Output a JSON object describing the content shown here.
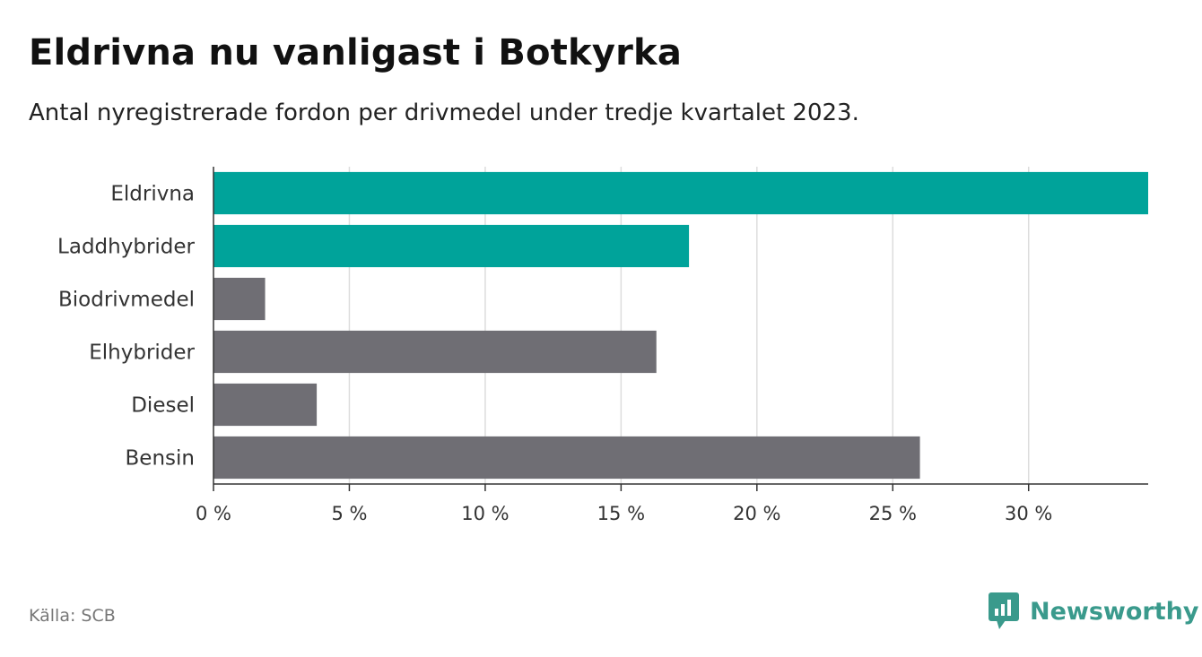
{
  "header": {
    "title": "Eldrivna nu vanligast i Botkyrka",
    "subtitle": "Antal nyregistrerade fordon per drivmedel under tredje kvartalet 2023."
  },
  "chart_data": {
    "type": "bar",
    "orientation": "horizontal",
    "categories": [
      "Eldrivna",
      "Laddhybrider",
      "Biodrivmedel",
      "Elhybrider",
      "Diesel",
      "Bensin"
    ],
    "values": [
      34.4,
      17.5,
      1.9,
      16.3,
      3.8,
      26.0
    ],
    "colors": [
      "#00a39a",
      "#00a39a",
      "#6f6e74",
      "#6f6e74",
      "#6f6e74",
      "#6f6e74"
    ],
    "x_ticks": [
      0,
      5,
      10,
      15,
      20,
      25,
      30
    ],
    "x_tick_labels": [
      "0 %",
      "5 %",
      "10 %",
      "15 %",
      "20 %",
      "25 %",
      "30 %"
    ],
    "xlim": [
      0,
      34.4
    ],
    "unit": "%",
    "grid": true,
    "legend": "none"
  },
  "footer": {
    "source": "Källa: SCB",
    "logo_text": "Newsworthy",
    "logo_icon": "bar-chart-speech-icon",
    "logo_color": "#3a9a8c"
  }
}
